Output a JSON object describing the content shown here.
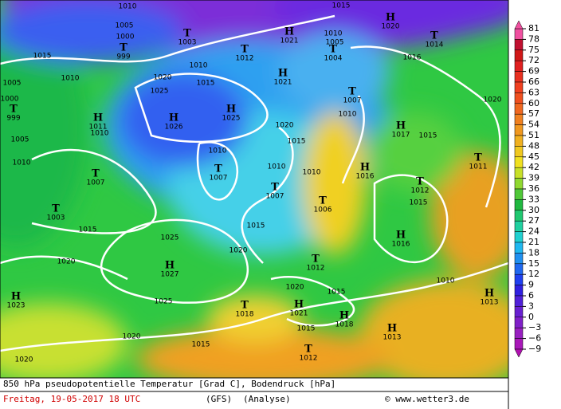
{
  "centers": [
    {
      "symbol": "H",
      "value": "1020"
    },
    {
      "symbol": "T",
      "value": "1014"
    },
    {
      "symbol": "H",
      "value": "1021"
    },
    {
      "symbol": "T",
      "value": "1012"
    },
    {
      "symbol": "T",
      "value": "1004"
    },
    {
      "symbol": "T",
      "value": "999"
    },
    {
      "symbol": "T",
      "value": "1003"
    },
    {
      "symbol": "H",
      "value": "1021"
    },
    {
      "symbol": "T",
      "value": "1007"
    },
    {
      "symbol": "H",
      "value": "1025"
    },
    {
      "symbol": "H",
      "value": "1026"
    },
    {
      "symbol": "T",
      "value": "999"
    },
    {
      "symbol": "H",
      "value": "1011"
    },
    {
      "symbol": "H",
      "value": "1017"
    },
    {
      "symbol": "T",
      "value": "1011"
    },
    {
      "symbol": "T",
      "value": "1007"
    },
    {
      "symbol": "T",
      "value": "1007"
    },
    {
      "symbol": "T",
      "value": "1007"
    },
    {
      "symbol": "H",
      "value": "1016"
    },
    {
      "symbol": "T",
      "value": "1012"
    },
    {
      "symbol": "T",
      "value": "1006"
    },
    {
      "symbol": "T",
      "value": "1003"
    },
    {
      "symbol": "H",
      "value": "1016"
    },
    {
      "symbol": "H",
      "value": "1027"
    },
    {
      "symbol": "T",
      "value": "1012"
    },
    {
      "symbol": "H",
      "value": "1023"
    },
    {
      "symbol": "H",
      "value": "1013"
    },
    {
      "symbol": "T",
      "value": "1018"
    },
    {
      "symbol": "H",
      "value": "1021"
    },
    {
      "symbol": "H",
      "value": "1018"
    },
    {
      "symbol": "H",
      "value": "1013"
    },
    {
      "symbol": "T",
      "value": "1012"
    }
  ],
  "isobar_labels": [
    "1010",
    "1015",
    "1005",
    "1000",
    "1010",
    "1005",
    "1015",
    "1010",
    "1005",
    "1000",
    "1010",
    "1020",
    "1015",
    "1025",
    "1016",
    "1010",
    "1005",
    "1010",
    "1010",
    "1020",
    "1015",
    "1010",
    "1010",
    "1010",
    "1015",
    "1015",
    "1015",
    "1025",
    "1020",
    "1020",
    "1015",
    "1025",
    "1020",
    "1015",
    "1010",
    "1020",
    "1015",
    "1015",
    "1020",
    "1020"
  ],
  "colorbar": {
    "ticks": [
      "81",
      "78",
      "75",
      "72",
      "69",
      "66",
      "63",
      "60",
      "57",
      "54",
      "51",
      "48",
      "45",
      "42",
      "39",
      "36",
      "33",
      "30",
      "27",
      "24",
      "21",
      "18",
      "15",
      "12",
      "9",
      "6",
      "3",
      "0",
      "−3",
      "−6",
      "−9"
    ]
  },
  "footer": {
    "title": "850 hPa pseudopotentielle Temperatur [Grad C], Bodendruck [hPa]",
    "date": "Freitag, 19-05-2017  18 UTC",
    "model": "(GFS)",
    "run": "(Analyse)",
    "credit": "© www.wetter3.de"
  }
}
